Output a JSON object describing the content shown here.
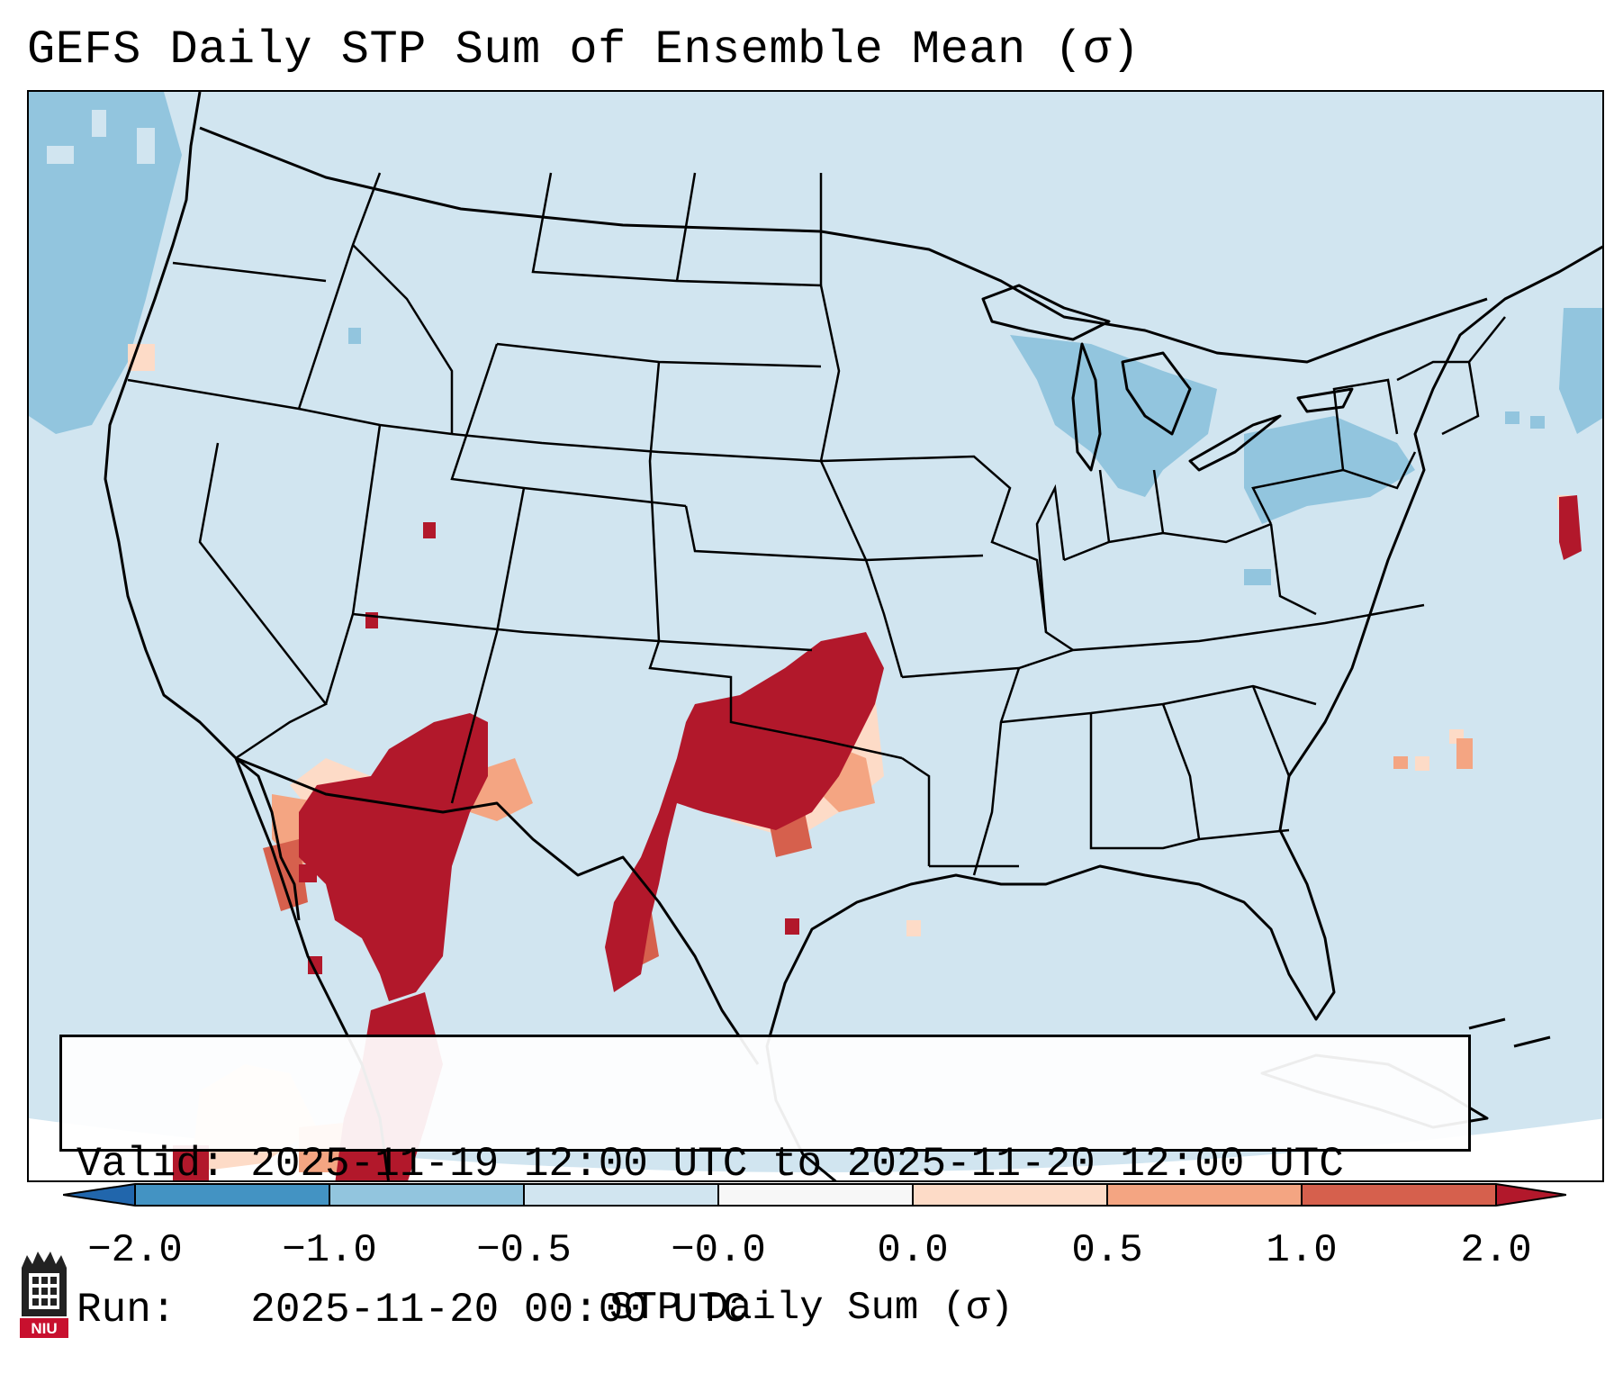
{
  "title": "GEFS Daily STP Sum of Ensemble Mean (σ)",
  "info": {
    "valid": "Valid: 2025-11-19 12:00 UTC to 2025-11-20 12:00 UTC",
    "run": "Run:   2025-11-20 00:00 UTC"
  },
  "colorbar": {
    "label": "STP Daily Sum (σ)",
    "ticks": [
      "−2.0",
      "−1.0",
      "−0.5",
      "−0.0",
      "0.0",
      "0.5",
      "1.0",
      "2.0"
    ],
    "colors": {
      "extend_low": "#2166ac",
      "bin_1": "#4393c3",
      "bin_2": "#92c5de",
      "bin_3": "#d1e5f0",
      "bin_4": "#f7f7f7",
      "bin_5": "#fddbc7",
      "bin_6": "#f4a582",
      "bin_7": "#d6604d",
      "extend_high": "#b2182b"
    }
  },
  "map": {
    "background_color": "#d1e5f0",
    "boundary_color": "#000000",
    "features": [
      "coastlines",
      "state-borders",
      "country-borders"
    ],
    "anomaly_regions": [
      {
        "name": "pacific-northwest-negative",
        "level": "bin_2"
      },
      {
        "name": "great-lakes-negative",
        "level": "bin_2"
      },
      {
        "name": "northeast-negative",
        "level": "bin_2"
      },
      {
        "name": "arizona-sonora-positive",
        "level": "extend_high"
      },
      {
        "name": "texas-oklahoma-positive",
        "level": "extend_high"
      },
      {
        "name": "mexico-positive",
        "level": "extend_high"
      },
      {
        "name": "atlantic-positive",
        "level": "extend_high"
      }
    ]
  },
  "logo": {
    "text": "NIU",
    "icon": "niu-logo-icon"
  }
}
